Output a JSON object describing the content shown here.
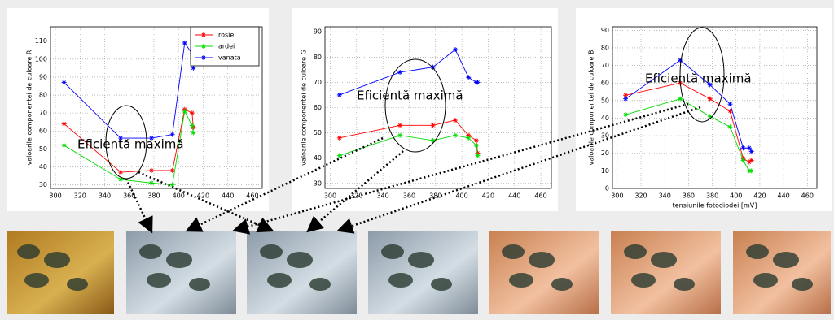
{
  "chart_data": [
    {
      "type": "line",
      "ylabel": "valoarile componentei de culoare R",
      "annotation": "Eficientă maximă",
      "x": [
        307,
        353,
        378,
        395,
        405,
        411,
        412
      ],
      "series": [
        {
          "name": "rosie",
          "color": "#ff0000",
          "values": [
            64,
            37,
            38,
            38,
            72,
            70,
            62
          ]
        },
        {
          "name": "ardei",
          "color": "#00dd00",
          "values": [
            52,
            33,
            31,
            30,
            71,
            63,
            59
          ]
        },
        {
          "name": "vanata",
          "color": "#0000ff",
          "values": [
            87,
            56,
            56,
            58,
            109,
            103,
            95
          ]
        }
      ],
      "xlim": [
        296,
        468
      ],
      "xticks": [
        300,
        320,
        340,
        360,
        380,
        400,
        420,
        440,
        460
      ],
      "ylim": [
        28,
        118
      ],
      "yticks": [
        30,
        40,
        50,
        60,
        70,
        80,
        90,
        100,
        110
      ],
      "grid": true,
      "legend": "top-right"
    },
    {
      "type": "line",
      "ylabel": "valoarile componentei de culoare G",
      "annotation": "Eficientă maximă",
      "x": [
        307,
        353,
        378,
        395,
        405,
        411,
        412
      ],
      "series": [
        {
          "color": "#ff0000",
          "values": [
            48,
            53,
            53,
            55,
            49,
            47,
            42
          ]
        },
        {
          "color": "#00dd00",
          "values": [
            41,
            49,
            47,
            49,
            48,
            45,
            41
          ]
        },
        {
          "color": "#0000ff",
          "values": [
            65,
            74,
            76,
            83,
            72,
            70,
            70
          ]
        }
      ],
      "xlim": [
        296,
        468
      ],
      "xticks": [
        300,
        320,
        340,
        360,
        380,
        400,
        420,
        440,
        460
      ],
      "ylim": [
        28,
        92
      ],
      "yticks": [
        30,
        40,
        50,
        60,
        70,
        80,
        90
      ],
      "grid": true
    },
    {
      "type": "line",
      "ylabel": "valoarile componentei de culoare B",
      "xlabel": "tensiunile fotodiodei [mV]",
      "annotation": "Eficientă maximă",
      "x": [
        307,
        353,
        378,
        395,
        406,
        411,
        413
      ],
      "series": [
        {
          "color": "#ff0000",
          "values": [
            53,
            60,
            51,
            44,
            17,
            15,
            16
          ]
        },
        {
          "color": "#00dd00",
          "values": [
            42,
            51,
            41,
            35,
            16,
            10,
            10
          ]
        },
        {
          "color": "#0000ff",
          "values": [
            51,
            73,
            59,
            48,
            23,
            23,
            21
          ]
        }
      ],
      "xlim": [
        296,
        468
      ],
      "xticks": [
        300,
        320,
        340,
        360,
        380,
        400,
        420,
        440,
        460
      ],
      "ylim": [
        0,
        92
      ],
      "yticks": [
        0,
        10,
        20,
        30,
        40,
        50,
        60,
        70,
        80,
        90
      ],
      "grid": true
    }
  ]
}
